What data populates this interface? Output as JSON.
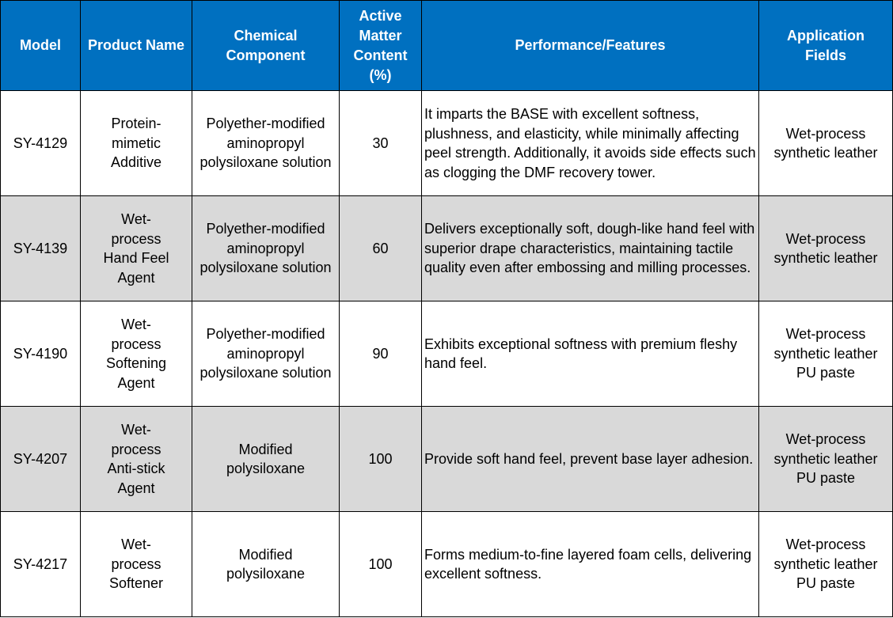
{
  "table": {
    "headers": [
      "Model",
      "Product Name",
      "Chemical Component",
      "Active Matter Content (%)",
      "Performance/Features",
      "Application Fields"
    ],
    "rows": [
      {
        "model": "SY-4129",
        "product_name": "Protein-mimetic Additive",
        "chemical_component": "Polyether-modified aminopropyl polysiloxane solution",
        "active_matter_content": "30",
        "performance_features": "It imparts the BASE with excellent softness, plushness, and elasticity, while minimally affecting peel strength. Additionally, it avoids side effects such as clogging the DMF recovery tower.",
        "application_fields": "Wet-process synthetic leather"
      },
      {
        "model": "SY-4139",
        "product_name": "Wet-process Hand Feel Agent",
        "chemical_component": "Polyether-modified aminopropyl polysiloxane solution",
        "active_matter_content": "60",
        "performance_features": "Delivers exceptionally soft, dough-like hand feel with superior drape characteristics, maintaining tactile quality even after embossing and milling processes.",
        "application_fields": "Wet-process synthetic leather"
      },
      {
        "model": "SY-4190",
        "product_name": "Wet-process Softening Agent",
        "chemical_component": "Polyether-modified aminopropyl polysiloxane solution",
        "active_matter_content": "90",
        "performance_features": "Exhibits exceptional softness with premium fleshy hand feel.",
        "application_fields": "Wet-process synthetic leather PU paste"
      },
      {
        "model": "SY-4207",
        "product_name": "Wet-process Anti-stick Agent",
        "chemical_component": "Modified polysiloxane",
        "active_matter_content": "100",
        "performance_features": "Provide soft hand feel, prevent base layer adhesion.",
        "application_fields": "Wet-process synthetic leather PU paste"
      },
      {
        "model": "SY-4217",
        "product_name": "Wet-process Softener",
        "chemical_component": "Modified polysiloxane",
        "active_matter_content": "100",
        "performance_features": "Forms medium-to-fine layered foam cells, delivering excellent softness.",
        "application_fields": "Wet-process synthetic leather PU paste"
      }
    ]
  },
  "colors": {
    "header_background": "#0070c0",
    "header_text": "#ffffff",
    "alternate_row_background": "#d9d9d9",
    "border": "#000000"
  }
}
